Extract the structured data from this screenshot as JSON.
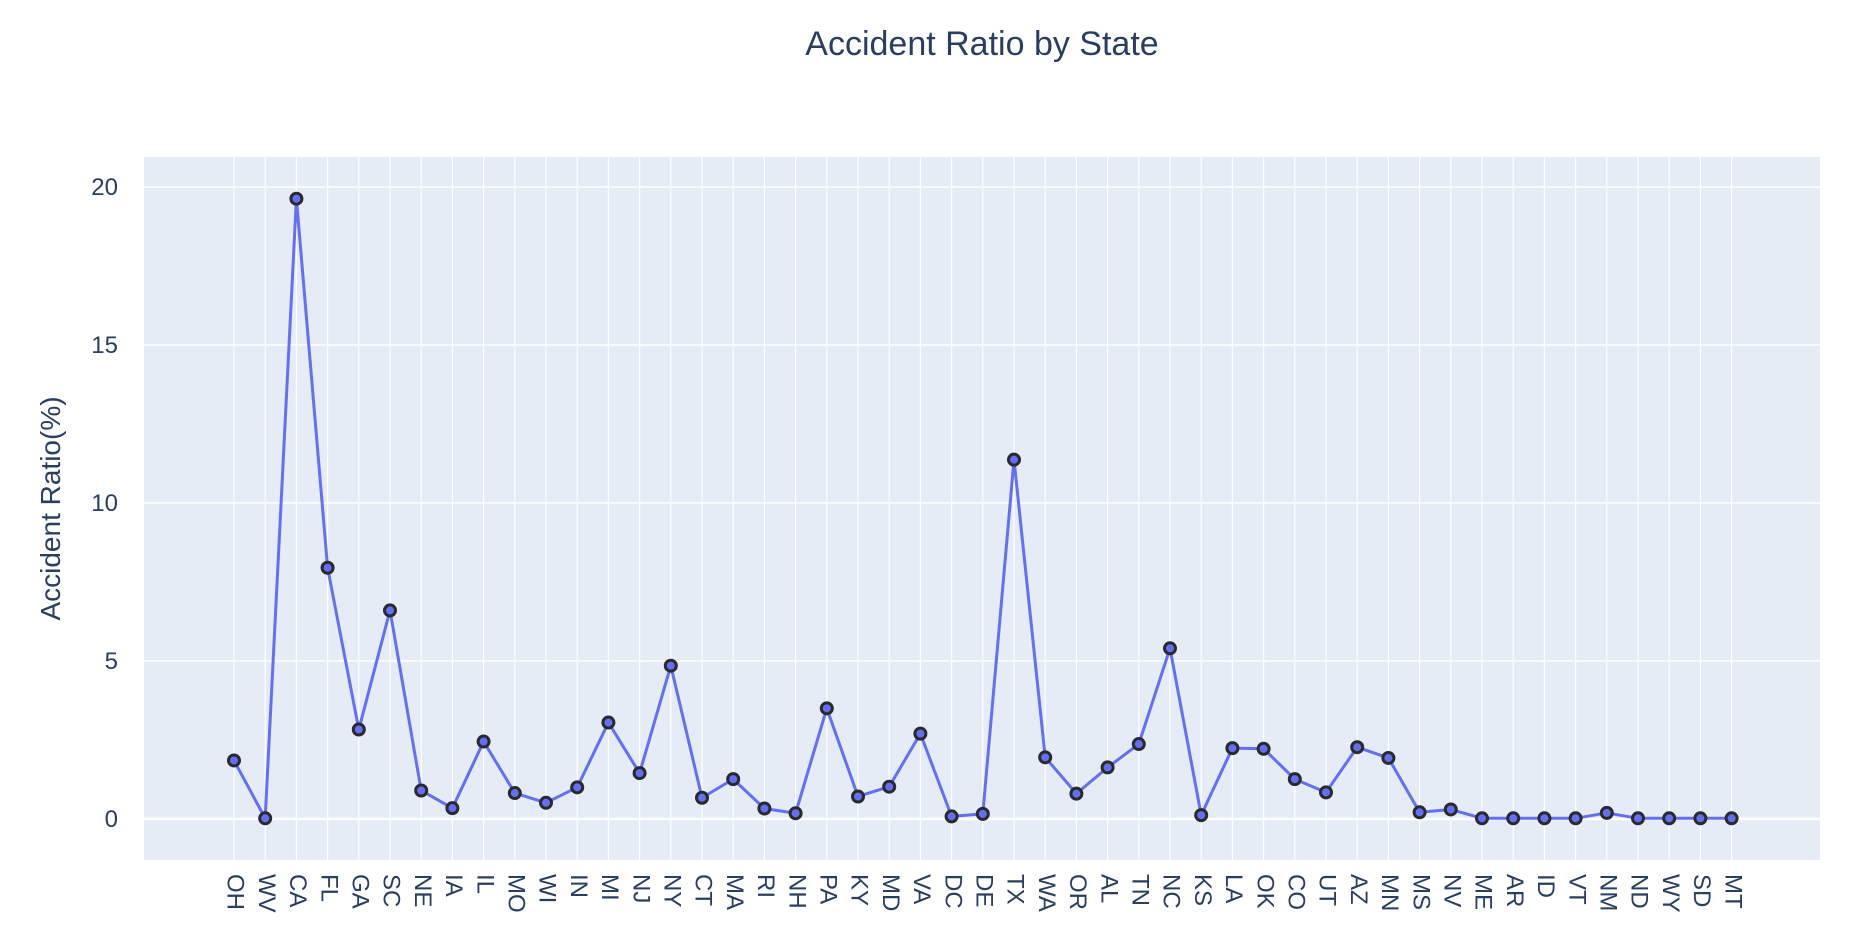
{
  "chart_data": {
    "type": "line",
    "title": "Accident Ratio by State",
    "xlabel": "",
    "ylabel": "Accident Ratio(%)",
    "ylim": [
      -1.3,
      20.95
    ],
    "yticks": [
      0,
      5,
      10,
      15,
      20
    ],
    "grid": true,
    "legend": "none",
    "categories": [
      "OH",
      "WV",
      "CA",
      "FL",
      "GA",
      "SC",
      "NE",
      "IA",
      "IL",
      "MO",
      "WI",
      "IN",
      "MI",
      "NJ",
      "NY",
      "CT",
      "MA",
      "RI",
      "NH",
      "PA",
      "KY",
      "MD",
      "VA",
      "DC",
      "DE",
      "TX",
      "WA",
      "OR",
      "AL",
      "TN",
      "NC",
      "KS",
      "LA",
      "OK",
      "CO",
      "UT",
      "AZ",
      "MN",
      "MS",
      "NV",
      "ME",
      "AR",
      "ID",
      "VT",
      "NM",
      "ND",
      "WY",
      "SD",
      "MT"
    ],
    "series": [
      {
        "values": [
          1.85,
          0.02,
          19.63,
          7.95,
          2.83,
          6.6,
          0.9,
          0.34,
          2.45,
          0.82,
          0.51,
          1.0,
          3.05,
          1.45,
          4.85,
          0.67,
          1.26,
          0.33,
          0.18,
          3.5,
          0.71,
          1.02,
          2.7,
          0.08,
          0.16,
          11.37,
          1.95,
          0.8,
          1.63,
          2.37,
          5.4,
          0.12,
          2.24,
          2.22,
          1.26,
          0.84,
          2.27,
          1.93,
          0.21,
          0.3,
          0.02,
          0.02,
          0.02,
          0.02,
          0.19,
          0.02,
          0.02,
          0.02,
          0.02
        ],
        "color": "#636efa"
      }
    ],
    "colors": {
      "plot_bg": "#e5ecf6",
      "grid": "#ffffff",
      "line": "#636efa",
      "marker_fill": "#636efa",
      "marker_outline": "#2a2a2a",
      "text": "#2a3f5f"
    }
  }
}
